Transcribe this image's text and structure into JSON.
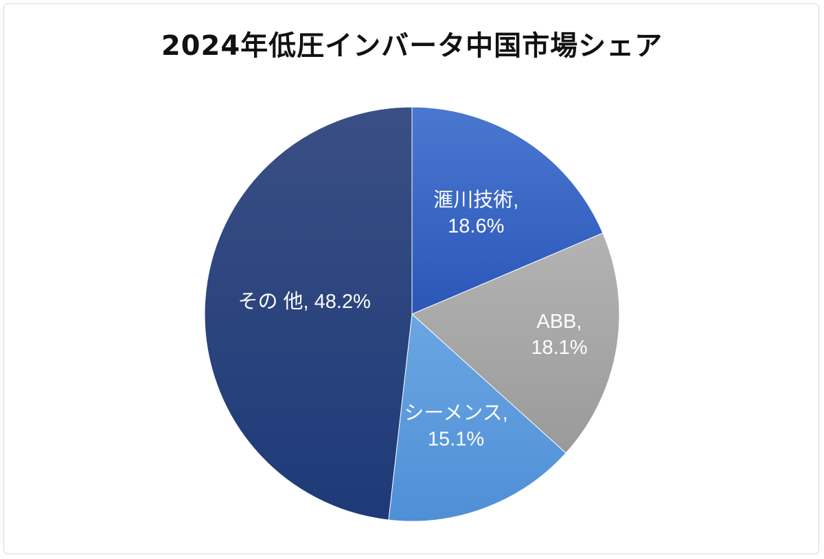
{
  "chart_data": {
    "type": "pie",
    "title": "2024年低圧インバータ中国市場シェア",
    "unit": "%",
    "slices": [
      {
        "name": "滙川技術",
        "value": 18.6,
        "value_label": "18.6%",
        "color": "#3562c2",
        "label_color": "#ffffff"
      },
      {
        "name": "ABB",
        "value": 18.1,
        "value_label": "18.1%",
        "color": "#a5a5a5",
        "label_color": "#ffffff"
      },
      {
        "name": "シーメンス",
        "value": 15.1,
        "value_label": "15.1%",
        "color": "#5b9bdd",
        "label_color": "#ffffff"
      },
      {
        "name": "その 他",
        "value": 48.2,
        "value_label": "48.2%",
        "color": "#223d7a",
        "label_color": "#ffffff"
      }
    ],
    "start_position": "top",
    "direction": "clockwise",
    "labels_inside": true,
    "legend": "none"
  }
}
